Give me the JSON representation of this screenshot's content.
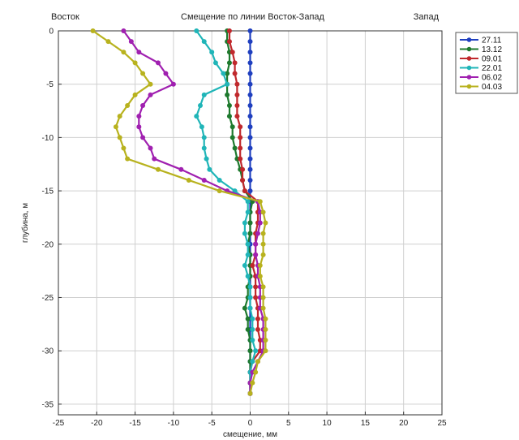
{
  "chart_data": {
    "type": "line",
    "title": "Смещение по линии Восток-Запад",
    "left_label": "Восток",
    "right_label": "Запад",
    "xlabel": "смещение, мм",
    "ylabel": "глубина, м",
    "xlim": [
      -25,
      25
    ],
    "ylim": [
      -36,
      0
    ],
    "xticks": [
      "-25",
      "-20",
      "-15",
      "-10",
      "-5",
      "0",
      "5",
      "10",
      "15",
      "20",
      "25"
    ],
    "yticks": [
      "0",
      "-5",
      "-10",
      "-15",
      "-20",
      "-25",
      "-30",
      "-35"
    ],
    "grid": true,
    "legend_position": "top-right",
    "depth": [
      0,
      -1,
      -2,
      -3,
      -4,
      -5,
      -6,
      -7,
      -8,
      -9,
      -10,
      -11,
      -12,
      -13,
      -14,
      -15,
      -16,
      -17,
      -18,
      -19,
      -20,
      -21,
      -22,
      -23,
      -24,
      -25,
      -26,
      -27,
      -28,
      -29,
      -30,
      -31,
      -32,
      -33,
      -34
    ],
    "series": [
      {
        "name": "27.11",
        "color": "#1f3fbf",
        "values": [
          0,
          0,
          0,
          0,
          0,
          0,
          0,
          0,
          0,
          0,
          0,
          0,
          0,
          0,
          0,
          0,
          0,
          0,
          0,
          0,
          0,
          0,
          0,
          0,
          0,
          0,
          0,
          0,
          0,
          0,
          0,
          0,
          0,
          0,
          0
        ]
      },
      {
        "name": "13.12",
        "color": "#1e7a2e",
        "values": [
          -3,
          -3,
          -2.7,
          -2.7,
          -3,
          -3,
          -3,
          -2.7,
          -2.7,
          -2.3,
          -2.3,
          -2,
          -1.7,
          -1.3,
          -1,
          -0.7,
          0.3,
          0,
          0,
          0,
          -0.3,
          0,
          0,
          0,
          -0.3,
          -0.3,
          -0.7,
          -0.3,
          -0.3,
          0,
          0,
          0,
          0,
          0,
          0
        ]
      },
      {
        "name": "09.01",
        "color": "#c0282c",
        "values": [
          -2.7,
          -2.7,
          -2.3,
          -2,
          -2,
          -1.7,
          -1.7,
          -1.7,
          -1.7,
          -1.3,
          -1.3,
          -1.3,
          -1.3,
          -1,
          -1,
          -0.7,
          1,
          1,
          1,
          0.7,
          0.7,
          0.7,
          0.3,
          0.7,
          0.7,
          0.7,
          1,
          1,
          1,
          1.3,
          1.3,
          0.3,
          0,
          0,
          0
        ]
      },
      {
        "name": "22.01",
        "color": "#20b5b8",
        "values": [
          -7,
          -6,
          -5,
          -4.5,
          -3.5,
          -3,
          -6,
          -6.5,
          -7,
          -6.3,
          -6,
          -6,
          -5.7,
          -5.3,
          -4,
          -2,
          -0.3,
          -0.3,
          -0.7,
          -0.7,
          -0.3,
          -0.3,
          -0.7,
          -0.3,
          0,
          0,
          0,
          0.3,
          0.3,
          0.3,
          0.7,
          0.3,
          0,
          0,
          0
        ]
      },
      {
        "name": "06.02",
        "color": "#a020b0",
        "values": [
          -16.5,
          -15.5,
          -14.5,
          -12,
          -11,
          -10,
          -13,
          -14,
          -14.5,
          -14.5,
          -14,
          -13,
          -12.5,
          -9,
          -6,
          -3,
          1,
          1.3,
          1.3,
          1,
          0.7,
          0.7,
          1,
          1,
          1.3,
          1.3,
          1.3,
          1.7,
          1.7,
          1.7,
          1.7,
          1,
          0.3,
          0,
          0
        ]
      },
      {
        "name": "04.03",
        "color": "#b8b21e",
        "values": [
          -20.5,
          -18.5,
          -16.5,
          -15,
          -14,
          -13,
          -15,
          -16,
          -17,
          -17.5,
          -17,
          -16.5,
          -16,
          -12,
          -8,
          -4,
          1.3,
          1.7,
          2,
          1.7,
          1.7,
          1.7,
          1.3,
          1.3,
          1.7,
          1.7,
          1.7,
          2,
          2,
          2,
          2,
          1,
          0.7,
          0.3,
          0
        ]
      }
    ]
  }
}
